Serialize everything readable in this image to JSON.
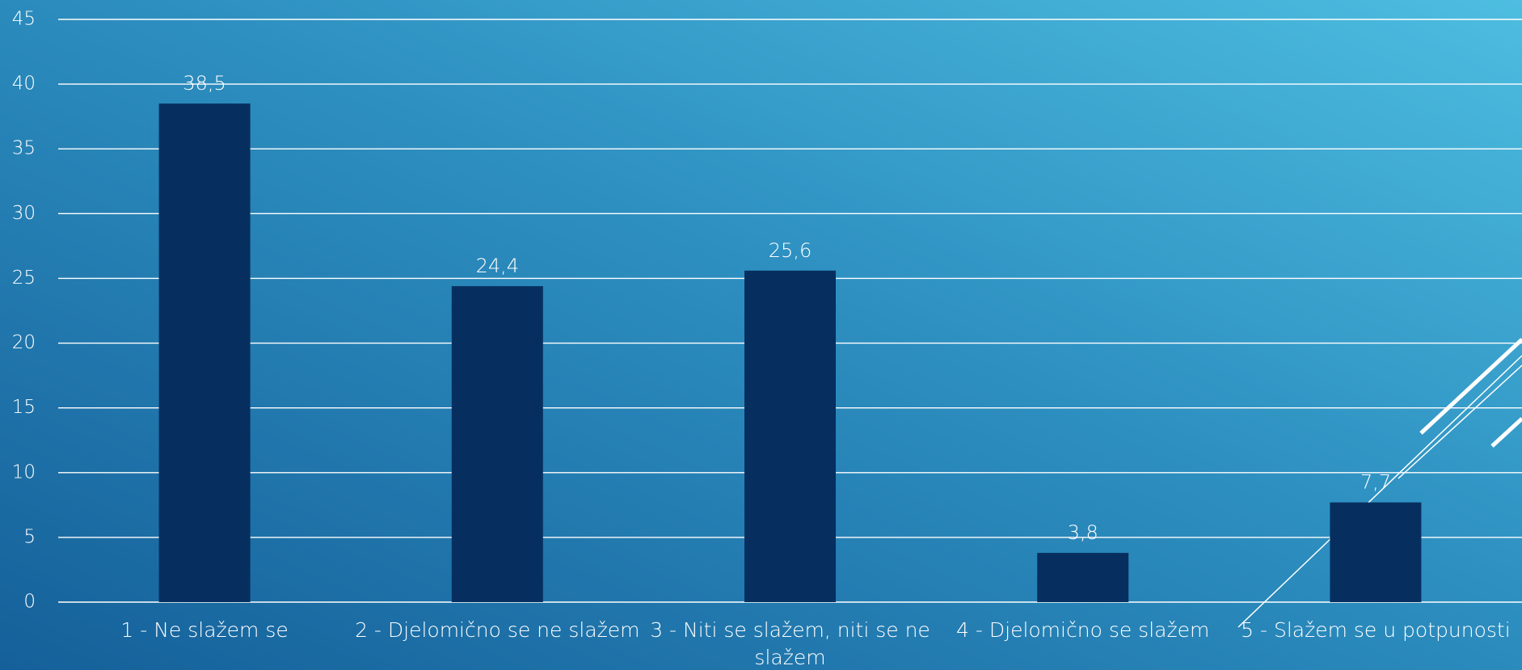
{
  "chart_data": {
    "type": "bar",
    "categories": [
      "1 - Ne slažem se",
      "2 - Djelomično se ne slažem",
      "3 - Niti se slažem, niti se ne slažem",
      "4 - Djelomično se slažem",
      "5 - Slažem se u potpunosti"
    ],
    "values": [
      38.5,
      24.4,
      25.6,
      3.8,
      7.7
    ],
    "value_labels": [
      "38,5",
      "24,4",
      "25,6",
      "3,8",
      "7,7"
    ],
    "color": "#062f60",
    "ylim": [
      0,
      45
    ],
    "yticks": [
      0,
      5,
      10,
      15,
      20,
      25,
      30,
      35,
      40,
      45
    ],
    "grid": true
  }
}
